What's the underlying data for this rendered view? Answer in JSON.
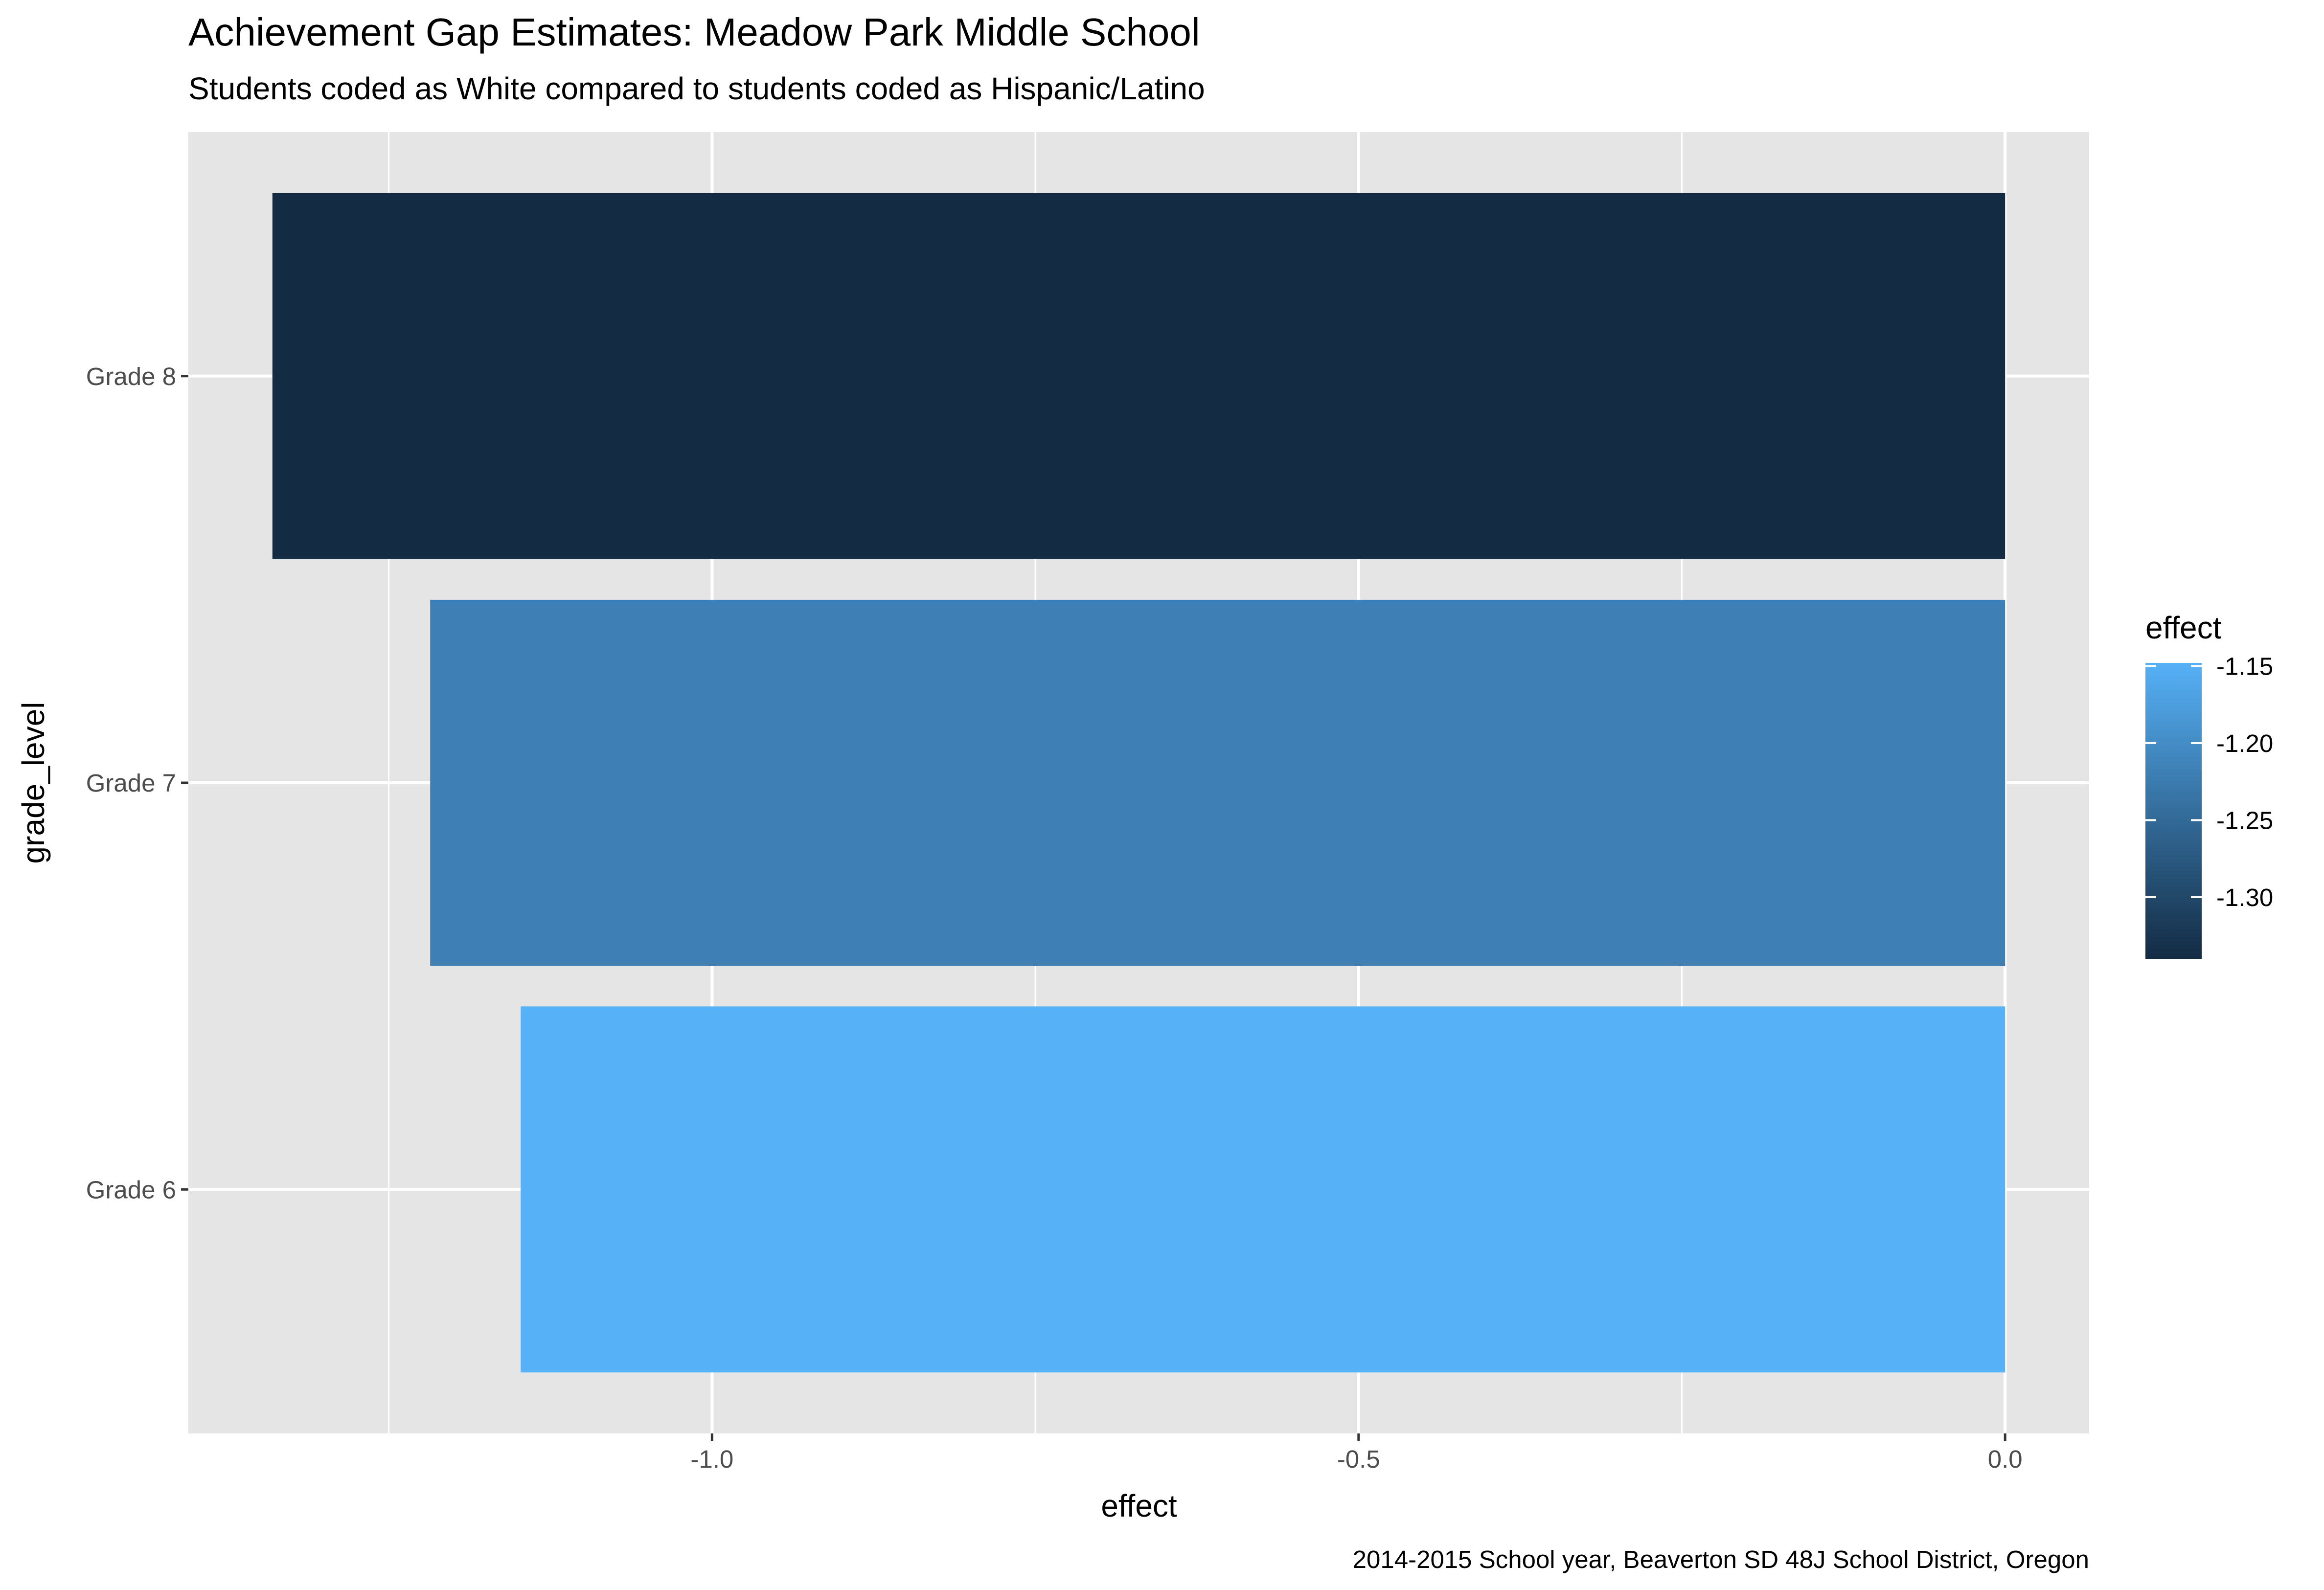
{
  "chart_data": {
    "type": "bar",
    "orientation": "horizontal",
    "title": "Achievement Gap Estimates: Meadow Park Middle School",
    "subtitle": "Students coded as White compared to students coded as Hispanic/Latino",
    "caption": "2014-2015 School year, Beaverton SD 48J School District, Oregon",
    "xlabel": "effect",
    "ylabel": "grade_level",
    "categories": [
      "Grade 6",
      "Grade 7",
      "Grade 8"
    ],
    "values": [
      -1.148,
      -1.218,
      -1.34
    ],
    "xlim": [
      -1.405,
      0.065
    ],
    "x_ticks": [
      -1.0,
      -0.5,
      0.0
    ],
    "x_tick_labels": [
      "-1.0",
      "-0.5",
      "0.0"
    ],
    "grid": true,
    "panel_background": "#e5e5e5",
    "legend": {
      "title": "effect",
      "position": "right",
      "type": "colorbar",
      "range": [
        -1.34,
        -1.148
      ],
      "ticks": [
        -1.15,
        -1.2,
        -1.25,
        -1.3
      ],
      "tick_labels": [
        "-1.15",
        "-1.20",
        "-1.25",
        "-1.30"
      ],
      "low_color": "#132b43",
      "high_color": "#56b1f7"
    }
  }
}
